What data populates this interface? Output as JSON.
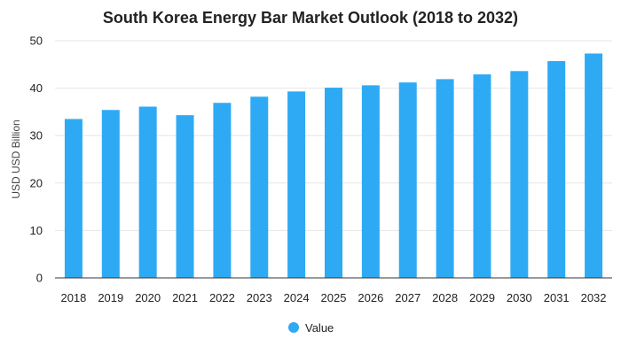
{
  "chart_data": {
    "type": "bar",
    "title": "South Korea Energy Bar Market Outlook (2018 to 2032)",
    "xlabel": "",
    "ylabel": "USD USD Billion",
    "categories": [
      "2018",
      "2019",
      "2020",
      "2021",
      "2022",
      "2023",
      "2024",
      "2025",
      "2026",
      "2027",
      "2028",
      "2029",
      "2030",
      "2031",
      "2032"
    ],
    "series": [
      {
        "name": "Value",
        "values": [
          33.5,
          35.4,
          36.1,
          34.3,
          36.9,
          38.2,
          39.3,
          40.1,
          40.6,
          41.2,
          41.9,
          42.9,
          43.6,
          45.7,
          47.3
        ]
      }
    ],
    "ylim": [
      0,
      50
    ],
    "yticks": [
      "0",
      "10",
      "20",
      "30",
      "40",
      "50"
    ],
    "grid": true,
    "legend_position": "bottom",
    "colors": {
      "bar": "#2eaaf5",
      "grid": "#e6e6e6",
      "axis": "#333333"
    }
  }
}
